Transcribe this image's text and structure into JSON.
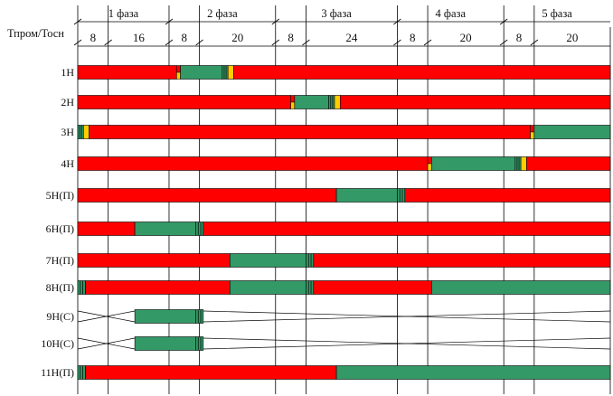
{
  "header": {
    "row_label": "Тпром/Тосн",
    "phases": [
      "1 фаза",
      "2 фаза",
      "3 фаза",
      "4 фаза",
      "5 фаза"
    ],
    "durations": [
      "8",
      "16",
      "8",
      "20",
      "8",
      "24",
      "8",
      "20",
      "8",
      "20"
    ]
  },
  "colors": {
    "red": "#ff0000",
    "green": "#339966",
    "yellow": "#ffcc00",
    "stripe": "#1e6b3c",
    "grid": "#000000"
  },
  "rows": [
    {
      "label": "1Н",
      "segments": [
        {
          "c": "red",
          "from": 0,
          "to": 26
        },
        {
          "c": "redyellow",
          "from": 26,
          "to": 27
        },
        {
          "c": "green",
          "from": 27,
          "to": 38
        },
        {
          "c": "stripes",
          "from": 38,
          "to": 39.5
        },
        {
          "c": "yellow",
          "from": 39.5,
          "to": 41
        },
        {
          "c": "red",
          "from": 41,
          "to": 140
        }
      ]
    },
    {
      "label": "2Н",
      "segments": [
        {
          "c": "red",
          "from": 0,
          "to": 56
        },
        {
          "c": "redyellow",
          "from": 56,
          "to": 57
        },
        {
          "c": "green",
          "from": 57,
          "to": 66
        },
        {
          "c": "stripes",
          "from": 66,
          "to": 67.5
        },
        {
          "c": "yellow",
          "from": 67.5,
          "to": 69
        },
        {
          "c": "red",
          "from": 69,
          "to": 140
        }
      ]
    },
    {
      "label": "3Н",
      "segments": [
        {
          "c": "stripes",
          "from": 0,
          "to": 1.5
        },
        {
          "c": "yellow",
          "from": 1.5,
          "to": 3
        },
        {
          "c": "red",
          "from": 3,
          "to": 119
        },
        {
          "c": "redyellow",
          "from": 119,
          "to": 120
        },
        {
          "c": "green",
          "from": 120,
          "to": 140
        }
      ]
    },
    {
      "label": "4Н",
      "segments": [
        {
          "c": "red",
          "from": 0,
          "to": 92
        },
        {
          "c": "redyellow",
          "from": 92,
          "to": 93
        },
        {
          "c": "green",
          "from": 93,
          "to": 115
        },
        {
          "c": "stripes",
          "from": 115,
          "to": 116.5
        },
        {
          "c": "yellow",
          "from": 116.5,
          "to": 118
        },
        {
          "c": "red",
          "from": 118,
          "to": 140
        }
      ]
    },
    {
      "label": "5Н(П)",
      "segments": [
        {
          "c": "red",
          "from": 0,
          "to": 68
        },
        {
          "c": "green",
          "from": 68,
          "to": 84
        },
        {
          "c": "stripes",
          "from": 84,
          "to": 86
        },
        {
          "c": "red",
          "from": 86,
          "to": 140
        }
      ]
    },
    {
      "label": "6Н(П)",
      "segments": [
        {
          "c": "red",
          "from": 0,
          "to": 15
        },
        {
          "c": "green",
          "from": 15,
          "to": 31
        },
        {
          "c": "stripes",
          "from": 31,
          "to": 33
        },
        {
          "c": "red",
          "from": 33,
          "to": 140
        }
      ]
    },
    {
      "label": "7Н(П)",
      "segments": [
        {
          "c": "red",
          "from": 0,
          "to": 40
        },
        {
          "c": "green",
          "from": 40,
          "to": 60
        },
        {
          "c": "stripes",
          "from": 60,
          "to": 62
        },
        {
          "c": "red",
          "from": 62,
          "to": 140
        }
      ]
    },
    {
      "label": "8Н(П)",
      "segments": [
        {
          "c": "stripes",
          "from": 0,
          "to": 2
        },
        {
          "c": "red",
          "from": 2,
          "to": 40
        },
        {
          "c": "green",
          "from": 40,
          "to": 60
        },
        {
          "c": "stripes",
          "from": 60,
          "to": 62
        },
        {
          "c": "red",
          "from": 62,
          "to": 93
        },
        {
          "c": "green",
          "from": 93,
          "to": 140
        }
      ]
    },
    {
      "label": "9Н(С)",
      "cross": true,
      "segments": [
        {
          "c": "green",
          "from": 15,
          "to": 31
        },
        {
          "c": "stripes",
          "from": 31,
          "to": 33
        }
      ]
    },
    {
      "label": "10Н(С)",
      "cross": true,
      "segments": [
        {
          "c": "green",
          "from": 15,
          "to": 31
        },
        {
          "c": "stripes",
          "from": 31,
          "to": 33
        }
      ]
    },
    {
      "label": "11Н(П)",
      "segments": [
        {
          "c": "stripes",
          "from": 0,
          "to": 2
        },
        {
          "c": "red",
          "from": 2,
          "to": 68
        },
        {
          "c": "green",
          "from": 68,
          "to": 140
        }
      ]
    }
  ]
}
